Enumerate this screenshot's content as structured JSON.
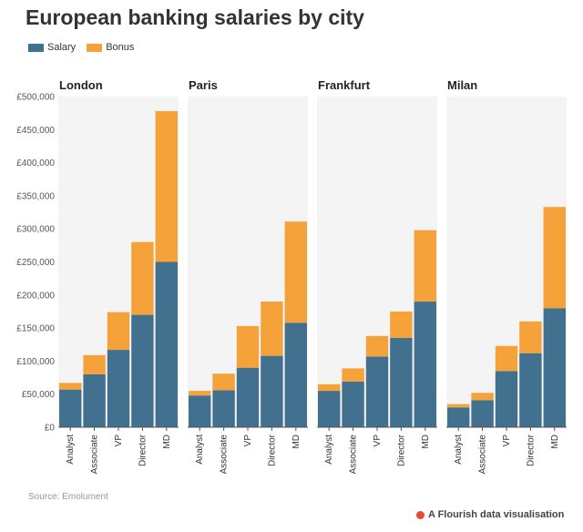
{
  "title": "European banking salaries by city",
  "legend": [
    {
      "label": "Salary",
      "color": "#42708f"
    },
    {
      "label": "Bonus",
      "color": "#f5a23a"
    }
  ],
  "source": "Source: Emolument",
  "credit": "A Flourish data visualisation",
  "chart_data": {
    "type": "bar",
    "stacked": true,
    "categories": [
      "Analyst",
      "Associate",
      "VP",
      "Director",
      "MD"
    ],
    "ylim": [
      0,
      500000
    ],
    "yticks": [
      0,
      50000,
      100000,
      150000,
      200000,
      250000,
      300000,
      350000,
      400000,
      450000,
      500000
    ],
    "ytick_labels": [
      "£0",
      "£50,000",
      "£100,000",
      "£150,000",
      "£200,000",
      "£250,000",
      "£300,000",
      "£350,000",
      "£400,000",
      "£450,000",
      "£500,000"
    ],
    "grid": false,
    "legend_position": "top-left",
    "panels": [
      {
        "name": "London",
        "series": [
          {
            "name": "Salary",
            "values": [
              57000,
              80000,
              117000,
              170000,
              250000
            ]
          },
          {
            "name": "Bonus",
            "values": [
              10000,
              29000,
              57000,
              110000,
              228000
            ]
          }
        ]
      },
      {
        "name": "Paris",
        "series": [
          {
            "name": "Salary",
            "values": [
              48000,
              56000,
              90000,
              108000,
              158000
            ]
          },
          {
            "name": "Bonus",
            "values": [
              7000,
              25000,
              63000,
              82000,
              153000
            ]
          }
        ]
      },
      {
        "name": "Frankfurt",
        "series": [
          {
            "name": "Salary",
            "values": [
              55000,
              69000,
              107000,
              135000,
              190000
            ]
          },
          {
            "name": "Bonus",
            "values": [
              10000,
              20000,
              31000,
              40000,
              108000
            ]
          }
        ]
      },
      {
        "name": "Milan",
        "series": [
          {
            "name": "Salary",
            "values": [
              30000,
              41000,
              85000,
              112000,
              180000
            ]
          },
          {
            "name": "Bonus",
            "values": [
              5000,
              11000,
              38000,
              48000,
              153000
            ]
          }
        ]
      }
    ]
  }
}
